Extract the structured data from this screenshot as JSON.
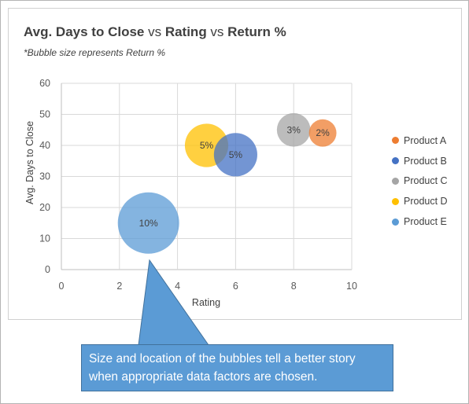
{
  "chart_data": {
    "type": "bubble",
    "title_parts": [
      {
        "text": "Avg. Days to Close",
        "bold": true
      },
      {
        "text": " vs ",
        "bold": false
      },
      {
        "text": "Rating",
        "bold": true
      },
      {
        "text": " vs ",
        "bold": false
      },
      {
        "text": "Return %",
        "bold": true
      }
    ],
    "subtitle": "*Bubble size represents Return %",
    "xlabel": "Rating",
    "ylabel": "Avg. Days to Close",
    "xlim": [
      0,
      10
    ],
    "ylim": [
      0,
      60
    ],
    "x_ticks": [
      "0",
      "2",
      "4",
      "6",
      "8",
      "10"
    ],
    "y_ticks": [
      "0",
      "10",
      "20",
      "30",
      "40",
      "50",
      "60"
    ],
    "grid": "on",
    "legend_position": "right",
    "series": [
      {
        "name": "Product A",
        "x": 9,
        "y": 44,
        "size": 2,
        "label": "2%",
        "color": "#ed7d31"
      },
      {
        "name": "Product B",
        "x": 6,
        "y": 37,
        "size": 5,
        "label": "5%",
        "color": "#4472c4"
      },
      {
        "name": "Product C",
        "x": 8,
        "y": 45,
        "size": 3,
        "label": "3%",
        "color": "#a5a5a5"
      },
      {
        "name": "Product D",
        "x": 5,
        "y": 40,
        "size": 5,
        "label": "5%",
        "color": "#ffc000"
      },
      {
        "name": "Product E",
        "x": 3,
        "y": 15,
        "size": 10,
        "label": "10%",
        "color": "#5b9bd5"
      }
    ]
  },
  "callout": {
    "line1": "Size and location of the bubbles tell a better story",
    "line2": "when appropriate data factors are chosen."
  }
}
